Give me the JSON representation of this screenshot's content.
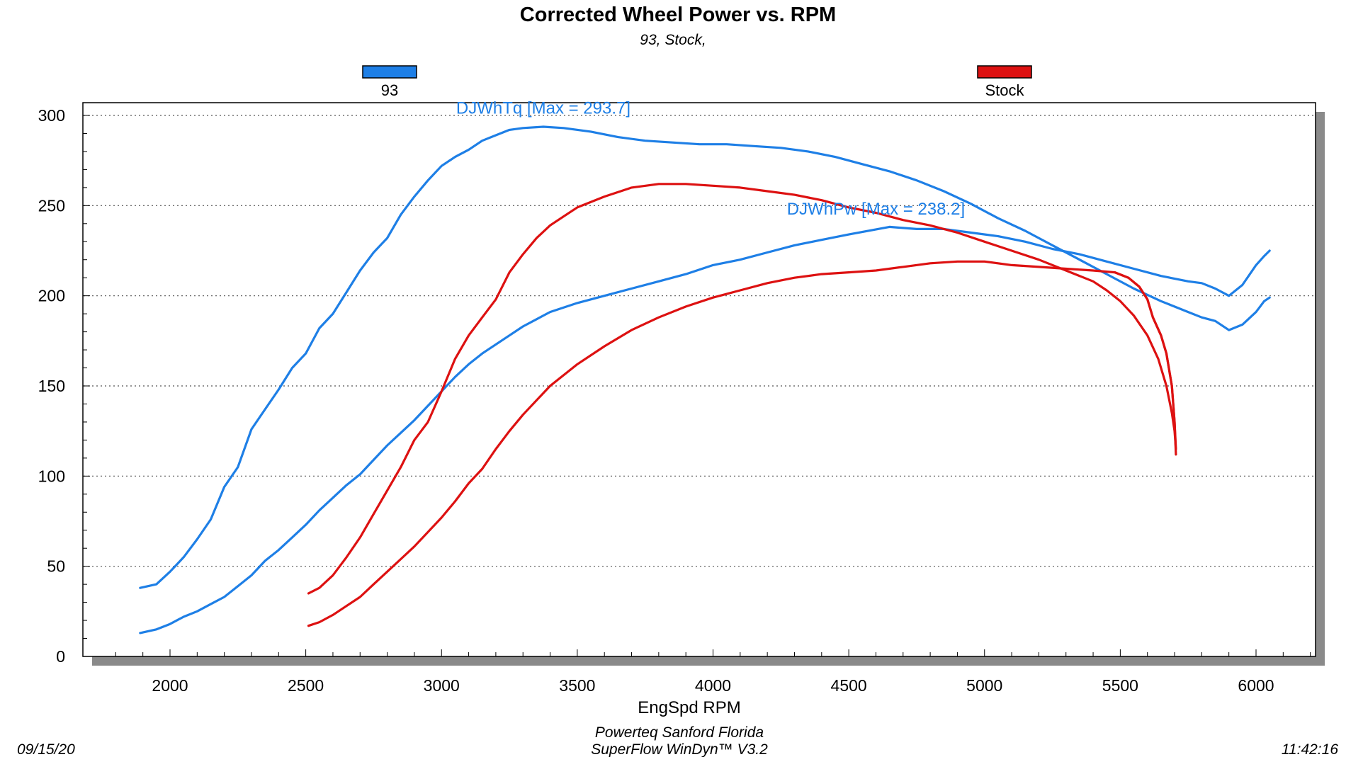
{
  "chart_data": {
    "type": "line",
    "title": "Corrected Wheel Power vs. RPM",
    "subtitle": "93, Stock,",
    "xlabel": "EngSpd RPM",
    "ylabel": "",
    "xlim": [
      1700,
      6200
    ],
    "ylim": [
      0,
      300
    ],
    "x_ticks": [
      "2000",
      "2500",
      "3000",
      "3500",
      "4000",
      "4500",
      "5000",
      "5500",
      "6000"
    ],
    "y_ticks": [
      "0",
      "50",
      "100",
      "150",
      "200",
      "250",
      "300"
    ],
    "grid": "horizontal dotted",
    "legend": [
      {
        "label": "93",
        "color": "#1e7fe6"
      },
      {
        "label": "Stock",
        "color": "#dd1111"
      }
    ],
    "annotations": [
      {
        "text": "DJWhTq [Max = 293.7]",
        "color": "#1e7fe6",
        "x": 3375,
        "y": 301
      },
      {
        "text": "DJWhPw [Max = 238.2]",
        "color": "#1e7fe6",
        "x": 4600,
        "y": 245
      }
    ],
    "series": [
      {
        "name": "93 DJWhTq",
        "color": "#1e7fe6",
        "points": [
          [
            1890,
            38
          ],
          [
            1950,
            40
          ],
          [
            2000,
            47
          ],
          [
            2050,
            55
          ],
          [
            2100,
            65
          ],
          [
            2150,
            76
          ],
          [
            2200,
            94
          ],
          [
            2250,
            105
          ],
          [
            2300,
            126
          ],
          [
            2350,
            137
          ],
          [
            2400,
            148
          ],
          [
            2450,
            160
          ],
          [
            2500,
            168
          ],
          [
            2550,
            182
          ],
          [
            2600,
            190
          ],
          [
            2650,
            202
          ],
          [
            2700,
            214
          ],
          [
            2750,
            224
          ],
          [
            2800,
            232
          ],
          [
            2850,
            245
          ],
          [
            2900,
            255
          ],
          [
            2950,
            264
          ],
          [
            3000,
            272
          ],
          [
            3050,
            277
          ],
          [
            3100,
            281
          ],
          [
            3150,
            286
          ],
          [
            3200,
            289
          ],
          [
            3250,
            292
          ],
          [
            3300,
            293
          ],
          [
            3375,
            293.7
          ],
          [
            3450,
            293
          ],
          [
            3550,
            291
          ],
          [
            3650,
            288
          ],
          [
            3750,
            286
          ],
          [
            3850,
            285
          ],
          [
            3950,
            284
          ],
          [
            4050,
            284
          ],
          [
            4150,
            283
          ],
          [
            4250,
            282
          ],
          [
            4350,
            280
          ],
          [
            4450,
            277
          ],
          [
            4550,
            273
          ],
          [
            4650,
            269
          ],
          [
            4750,
            264
          ],
          [
            4850,
            258
          ],
          [
            4950,
            251
          ],
          [
            5050,
            243
          ],
          [
            5150,
            236
          ],
          [
            5250,
            228
          ],
          [
            5350,
            220
          ],
          [
            5450,
            212
          ],
          [
            5550,
            204
          ],
          [
            5650,
            197
          ],
          [
            5750,
            191
          ],
          [
            5800,
            188
          ],
          [
            5850,
            186
          ],
          [
            5900,
            181
          ],
          [
            5950,
            184
          ],
          [
            6000,
            191
          ],
          [
            6030,
            197
          ],
          [
            6050,
            199
          ]
        ]
      },
      {
        "name": "93 DJWhPw",
        "color": "#1e7fe6",
        "points": [
          [
            1890,
            13
          ],
          [
            1950,
            15
          ],
          [
            2000,
            18
          ],
          [
            2050,
            22
          ],
          [
            2100,
            25
          ],
          [
            2150,
            29
          ],
          [
            2200,
            33
          ],
          [
            2250,
            39
          ],
          [
            2300,
            45
          ],
          [
            2350,
            53
          ],
          [
            2400,
            59
          ],
          [
            2450,
            66
          ],
          [
            2500,
            73
          ],
          [
            2550,
            81
          ],
          [
            2600,
            88
          ],
          [
            2650,
            95
          ],
          [
            2700,
            101
          ],
          [
            2750,
            109
          ],
          [
            2800,
            117
          ],
          [
            2850,
            124
          ],
          [
            2900,
            131
          ],
          [
            2950,
            139
          ],
          [
            3000,
            147
          ],
          [
            3050,
            155
          ],
          [
            3100,
            162
          ],
          [
            3150,
            168
          ],
          [
            3200,
            173
          ],
          [
            3250,
            178
          ],
          [
            3300,
            183
          ],
          [
            3350,
            187
          ],
          [
            3400,
            191
          ],
          [
            3500,
            196
          ],
          [
            3600,
            200
          ],
          [
            3700,
            204
          ],
          [
            3800,
            208
          ],
          [
            3900,
            212
          ],
          [
            4000,
            217
          ],
          [
            4100,
            220
          ],
          [
            4200,
            224
          ],
          [
            4300,
            228
          ],
          [
            4400,
            231
          ],
          [
            4500,
            234
          ],
          [
            4650,
            238.2
          ],
          [
            4750,
            237
          ],
          [
            4850,
            237
          ],
          [
            4950,
            235
          ],
          [
            5050,
            233
          ],
          [
            5150,
            230
          ],
          [
            5250,
            226
          ],
          [
            5350,
            223
          ],
          [
            5450,
            219
          ],
          [
            5550,
            215
          ],
          [
            5650,
            211
          ],
          [
            5750,
            208
          ],
          [
            5800,
            207
          ],
          [
            5850,
            204
          ],
          [
            5900,
            200
          ],
          [
            5950,
            206
          ],
          [
            6000,
            217
          ],
          [
            6030,
            222
          ],
          [
            6050,
            225
          ]
        ]
      },
      {
        "name": "Stock Tq",
        "color": "#dd1111",
        "points": [
          [
            2510,
            35
          ],
          [
            2550,
            38
          ],
          [
            2600,
            45
          ],
          [
            2650,
            55
          ],
          [
            2700,
            66
          ],
          [
            2750,
            79
          ],
          [
            2800,
            92
          ],
          [
            2850,
            105
          ],
          [
            2900,
            120
          ],
          [
            2950,
            130
          ],
          [
            3000,
            147
          ],
          [
            3050,
            165
          ],
          [
            3100,
            178
          ],
          [
            3150,
            188
          ],
          [
            3200,
            198
          ],
          [
            3250,
            213
          ],
          [
            3300,
            223
          ],
          [
            3350,
            232
          ],
          [
            3400,
            239
          ],
          [
            3450,
            244
          ],
          [
            3500,
            249
          ],
          [
            3600,
            255
          ],
          [
            3700,
            260
          ],
          [
            3800,
            262
          ],
          [
            3900,
            262
          ],
          [
            4000,
            261
          ],
          [
            4100,
            260
          ],
          [
            4200,
            258
          ],
          [
            4300,
            256
          ],
          [
            4400,
            253
          ],
          [
            4500,
            249
          ],
          [
            4600,
            246
          ],
          [
            4700,
            242
          ],
          [
            4800,
            239
          ],
          [
            4900,
            235
          ],
          [
            5000,
            230
          ],
          [
            5100,
            225
          ],
          [
            5200,
            220
          ],
          [
            5300,
            214
          ],
          [
            5400,
            208
          ],
          [
            5450,
            203
          ],
          [
            5500,
            197
          ],
          [
            5550,
            189
          ],
          [
            5600,
            178
          ],
          [
            5640,
            165
          ],
          [
            5670,
            150
          ],
          [
            5690,
            135
          ],
          [
            5700,
            125
          ],
          [
            5705,
            115
          ],
          [
            5700,
            130
          ],
          [
            5690,
            150
          ],
          [
            5670,
            168
          ],
          [
            5650,
            178
          ],
          [
            5620,
            188
          ],
          [
            5600,
            198
          ],
          [
            5570,
            205
          ],
          [
            5530,
            210
          ],
          [
            5480,
            213
          ]
        ]
      },
      {
        "name": "Stock Pw",
        "color": "#dd1111",
        "points": [
          [
            2510,
            17
          ],
          [
            2550,
            19
          ],
          [
            2600,
            23
          ],
          [
            2650,
            28
          ],
          [
            2700,
            33
          ],
          [
            2750,
            40
          ],
          [
            2800,
            47
          ],
          [
            2850,
            54
          ],
          [
            2900,
            61
          ],
          [
            2950,
            69
          ],
          [
            3000,
            77
          ],
          [
            3050,
            86
          ],
          [
            3100,
            96
          ],
          [
            3150,
            104
          ],
          [
            3200,
            115
          ],
          [
            3250,
            125
          ],
          [
            3300,
            134
          ],
          [
            3400,
            150
          ],
          [
            3500,
            162
          ],
          [
            3600,
            172
          ],
          [
            3700,
            181
          ],
          [
            3800,
            188
          ],
          [
            3900,
            194
          ],
          [
            4000,
            199
          ],
          [
            4100,
            203
          ],
          [
            4200,
            207
          ],
          [
            4300,
            210
          ],
          [
            4400,
            212
          ],
          [
            4500,
            213
          ],
          [
            4600,
            214
          ],
          [
            4700,
            216
          ],
          [
            4800,
            218
          ],
          [
            4900,
            219
          ],
          [
            5000,
            219
          ],
          [
            5100,
            217
          ],
          [
            5200,
            216
          ],
          [
            5300,
            215
          ],
          [
            5400,
            214
          ],
          [
            5480,
            213
          ],
          [
            5530,
            210
          ],
          [
            5570,
            205
          ],
          [
            5600,
            198
          ],
          [
            5620,
            188
          ],
          [
            5650,
            178
          ],
          [
            5670,
            168
          ],
          [
            5690,
            150
          ],
          [
            5700,
            130
          ],
          [
            5705,
            112
          ]
        ]
      }
    ]
  },
  "footer": {
    "line1": "Powerteq Sanford Florida",
    "line2": "SuperFlow WinDyn™ V3.2",
    "date": "09/15/20",
    "time": "11:42:16"
  }
}
